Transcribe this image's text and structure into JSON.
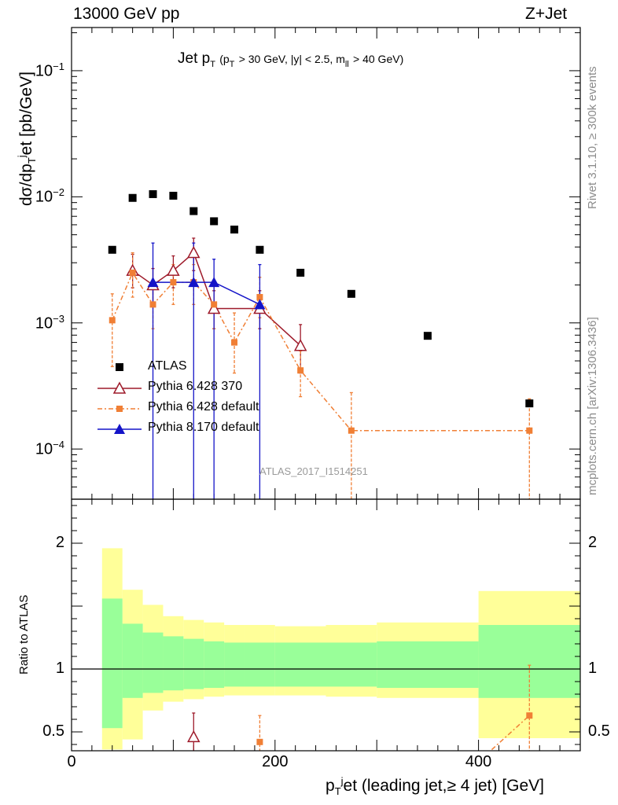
{
  "header": {
    "left": "13000 GeV pp",
    "right": "Z+Jet"
  },
  "side_labels": {
    "rivet": "Rivet 3.1.10, ≥ 300k events",
    "mcplots": "mcplots.cern.ch [arXiv:1306.3436]"
  },
  "plot_title": {
    "main": "Jet p",
    "main_sub": "T",
    "cuts_a": "(p",
    "cuts_a_sub": "T",
    "cuts_b": "> 30 GeV, |y| < 2.5, m",
    "cuts_b_sub": "ll",
    "cuts_c": "> 40 GeV)"
  },
  "axes": {
    "ylabel_top": "dσ/dp",
    "ylabel_top_sub": "T",
    "ylabel_top_sup": "j",
    "ylabel_top_rest": "et [pb/GeV]",
    "ylabel_bottom": "Ratio to ATLAS",
    "xlabel": "p",
    "xlabel_sub": "T",
    "xlabel_sup": "j",
    "xlabel_rest": "et (leading jet,≥ 4 jet) [GeV]"
  },
  "watermark": "ATLAS_2017_I1514251",
  "legend": [
    {
      "label": "ATLAS",
      "color": "#000000",
      "marker": "square"
    },
    {
      "label": "Pythia 6.428 370",
      "color": "#9e1a2a",
      "marker": "triangle-open"
    },
    {
      "label": "Pythia 6.428 default",
      "color": "#f07f35",
      "marker": "square-small"
    },
    {
      "label": "Pythia 8.170 default",
      "color": "#1414c8",
      "marker": "triangle-filled"
    }
  ],
  "chart_data": {
    "type": "scatter",
    "x_range": [
      0,
      500
    ],
    "x_ticks": [
      0,
      200,
      400
    ],
    "main": {
      "yscale": "log",
      "ylim": [
        4e-05,
        0.22
      ],
      "ytick_labels": [
        {
          "value": 0.1,
          "base": "10",
          "exp": "−1"
        },
        {
          "value": 0.01,
          "base": "10",
          "exp": "−2"
        },
        {
          "value": 0.001,
          "base": "10",
          "exp": "−3"
        },
        {
          "value": 0.0001,
          "base": "10",
          "exp": "−4"
        }
      ],
      "series": [
        {
          "name": "ATLAS",
          "color": "#000000",
          "points": [
            {
              "x": 40,
              "y": 0.0038
            },
            {
              "x": 60,
              "y": 0.0098
            },
            {
              "x": 80,
              "y": 0.0105
            },
            {
              "x": 100,
              "y": 0.0102
            },
            {
              "x": 120,
              "y": 0.0077
            },
            {
              "x": 140,
              "y": 0.0064
            },
            {
              "x": 160,
              "y": 0.0055
            },
            {
              "x": 185,
              "y": 0.0038
            },
            {
              "x": 225,
              "y": 0.0025
            },
            {
              "x": 275,
              "y": 0.0017
            },
            {
              "x": 350,
              "y": 0.00079
            },
            {
              "x": 450,
              "y": 0.00023
            }
          ]
        },
        {
          "name": "Pythia 6.428 370",
          "color": "#9e1a2a",
          "points": [
            {
              "x": 60,
              "y": 0.0026,
              "lo": 0.0019,
              "hi": 0.0035
            },
            {
              "x": 80,
              "y": 0.002,
              "lo": 0.0014,
              "hi": 0.0027
            },
            {
              "x": 100,
              "y": 0.0026,
              "lo": 0.0019,
              "hi": 0.0034
            },
            {
              "x": 120,
              "y": 0.0036,
              "lo": 0.0026,
              "hi": 0.0047
            },
            {
              "x": 140,
              "y": 0.0013,
              "lo": 0.0009,
              "hi": 0.0018
            },
            {
              "x": 185,
              "y": 0.0013,
              "lo": 0.0009,
              "hi": 0.0018
            },
            {
              "x": 225,
              "y": 0.00066,
              "lo": 0.0004,
              "hi": 0.00097
            }
          ]
        },
        {
          "name": "Pythia 6.428 default",
          "color": "#f07f35",
          "points": [
            {
              "x": 40,
              "y": 0.00105,
              "lo": 0.00045,
              "hi": 0.0017
            },
            {
              "x": 60,
              "y": 0.0025,
              "lo": 0.0016,
              "hi": 0.0036
            },
            {
              "x": 80,
              "y": 0.0014,
              "lo": 0.0009,
              "hi": 0.0021
            },
            {
              "x": 100,
              "y": 0.0021,
              "lo": 0.0014,
              "hi": 0.0029
            },
            {
              "x": 120,
              "y": 0.0021,
              "lo": 0.0014,
              "hi": 0.0029
            },
            {
              "x": 140,
              "y": 0.0014,
              "lo": 0.0009,
              "hi": 0.0021
            },
            {
              "x": 160,
              "y": 0.0007,
              "lo": 0.0004,
              "hi": 0.0012
            },
            {
              "x": 185,
              "y": 0.0016,
              "lo": 0.0011,
              "hi": 0.0023
            },
            {
              "x": 225,
              "y": 0.00042,
              "lo": 0.00026,
              "hi": 0.0006
            },
            {
              "x": 275,
              "y": 0.00014,
              "lo": 3e-05,
              "hi": 0.00028
            },
            {
              "x": 450,
              "y": 0.00014,
              "lo": 3e-05,
              "hi": 0.00025
            }
          ]
        },
        {
          "name": "Pythia 8.170 default",
          "color": "#1414c8",
          "points": [
            {
              "x": 80,
              "y": 0.0021,
              "lo": 1e-05,
              "hi": 0.0043
            },
            {
              "x": 120,
              "y": 0.0021,
              "lo": 1e-05,
              "hi": 0.0043
            },
            {
              "x": 140,
              "y": 0.0021,
              "lo": 1e-05,
              "hi": 0.0032
            },
            {
              "x": 185,
              "y": 0.0014,
              "lo": 1e-05,
              "hi": 0.0029
            }
          ]
        }
      ]
    },
    "ratio": {
      "ylim": [
        0.35,
        2.35
      ],
      "yticks": [
        0.5,
        1,
        2
      ],
      "ytick_labels": [
        "0.5",
        "1",
        "2"
      ],
      "reference_line": 1,
      "bands": [
        {
          "x0": 30,
          "x1": 50,
          "inner": [
            0.53,
            1.56
          ],
          "outer": [
            0.36,
            1.96
          ]
        },
        {
          "x0": 50,
          "x1": 70,
          "inner": [
            0.77,
            1.36
          ],
          "outer": [
            0.44,
            1.63
          ]
        },
        {
          "x0": 70,
          "x1": 90,
          "inner": [
            0.81,
            1.29
          ],
          "outer": [
            0.67,
            1.51
          ]
        },
        {
          "x0": 90,
          "x1": 110,
          "inner": [
            0.83,
            1.26
          ],
          "outer": [
            0.74,
            1.42
          ]
        },
        {
          "x0": 110,
          "x1": 130,
          "inner": [
            0.84,
            1.24
          ],
          "outer": [
            0.76,
            1.39
          ]
        },
        {
          "x0": 130,
          "x1": 150,
          "inner": [
            0.85,
            1.22
          ],
          "outer": [
            0.78,
            1.37
          ]
        },
        {
          "x0": 150,
          "x1": 170,
          "inner": [
            0.86,
            1.21
          ],
          "outer": [
            0.79,
            1.35
          ]
        },
        {
          "x0": 170,
          "x1": 200,
          "inner": [
            0.86,
            1.21
          ],
          "outer": [
            0.79,
            1.35
          ]
        },
        {
          "x0": 200,
          "x1": 250,
          "inner": [
            0.86,
            1.21
          ],
          "outer": [
            0.79,
            1.34
          ]
        },
        {
          "x0": 250,
          "x1": 300,
          "inner": [
            0.86,
            1.21
          ],
          "outer": [
            0.78,
            1.35
          ]
        },
        {
          "x0": 300,
          "x1": 400,
          "inner": [
            0.85,
            1.22
          ],
          "outer": [
            0.77,
            1.37
          ]
        },
        {
          "x0": 400,
          "x1": 500,
          "inner": [
            0.77,
            1.35
          ],
          "outer": [
            0.45,
            1.62
          ]
        }
      ],
      "band_colors": {
        "inner": "#99ff99",
        "outer": "#ffff99"
      },
      "series": [
        {
          "name": "Pythia 6.428 370",
          "color": "#9e1a2a",
          "points": [
            {
              "x": 120,
              "y": 0.46,
              "lo": 0.3,
              "hi": 0.65
            }
          ]
        },
        {
          "name": "Pythia 6.428 default",
          "color": "#f07f35",
          "points": [
            {
              "x": 185,
              "y": 0.42,
              "lo": 0.3,
              "hi": 0.63
            },
            {
              "x": 450,
              "y": 0.63,
              "lo": 0.3,
              "hi": 1.03
            }
          ],
          "partial_line": [
            {
              "x": 405,
              "y": 0.3
            },
            {
              "x": 450,
              "y": 0.63
            }
          ]
        }
      ]
    }
  }
}
